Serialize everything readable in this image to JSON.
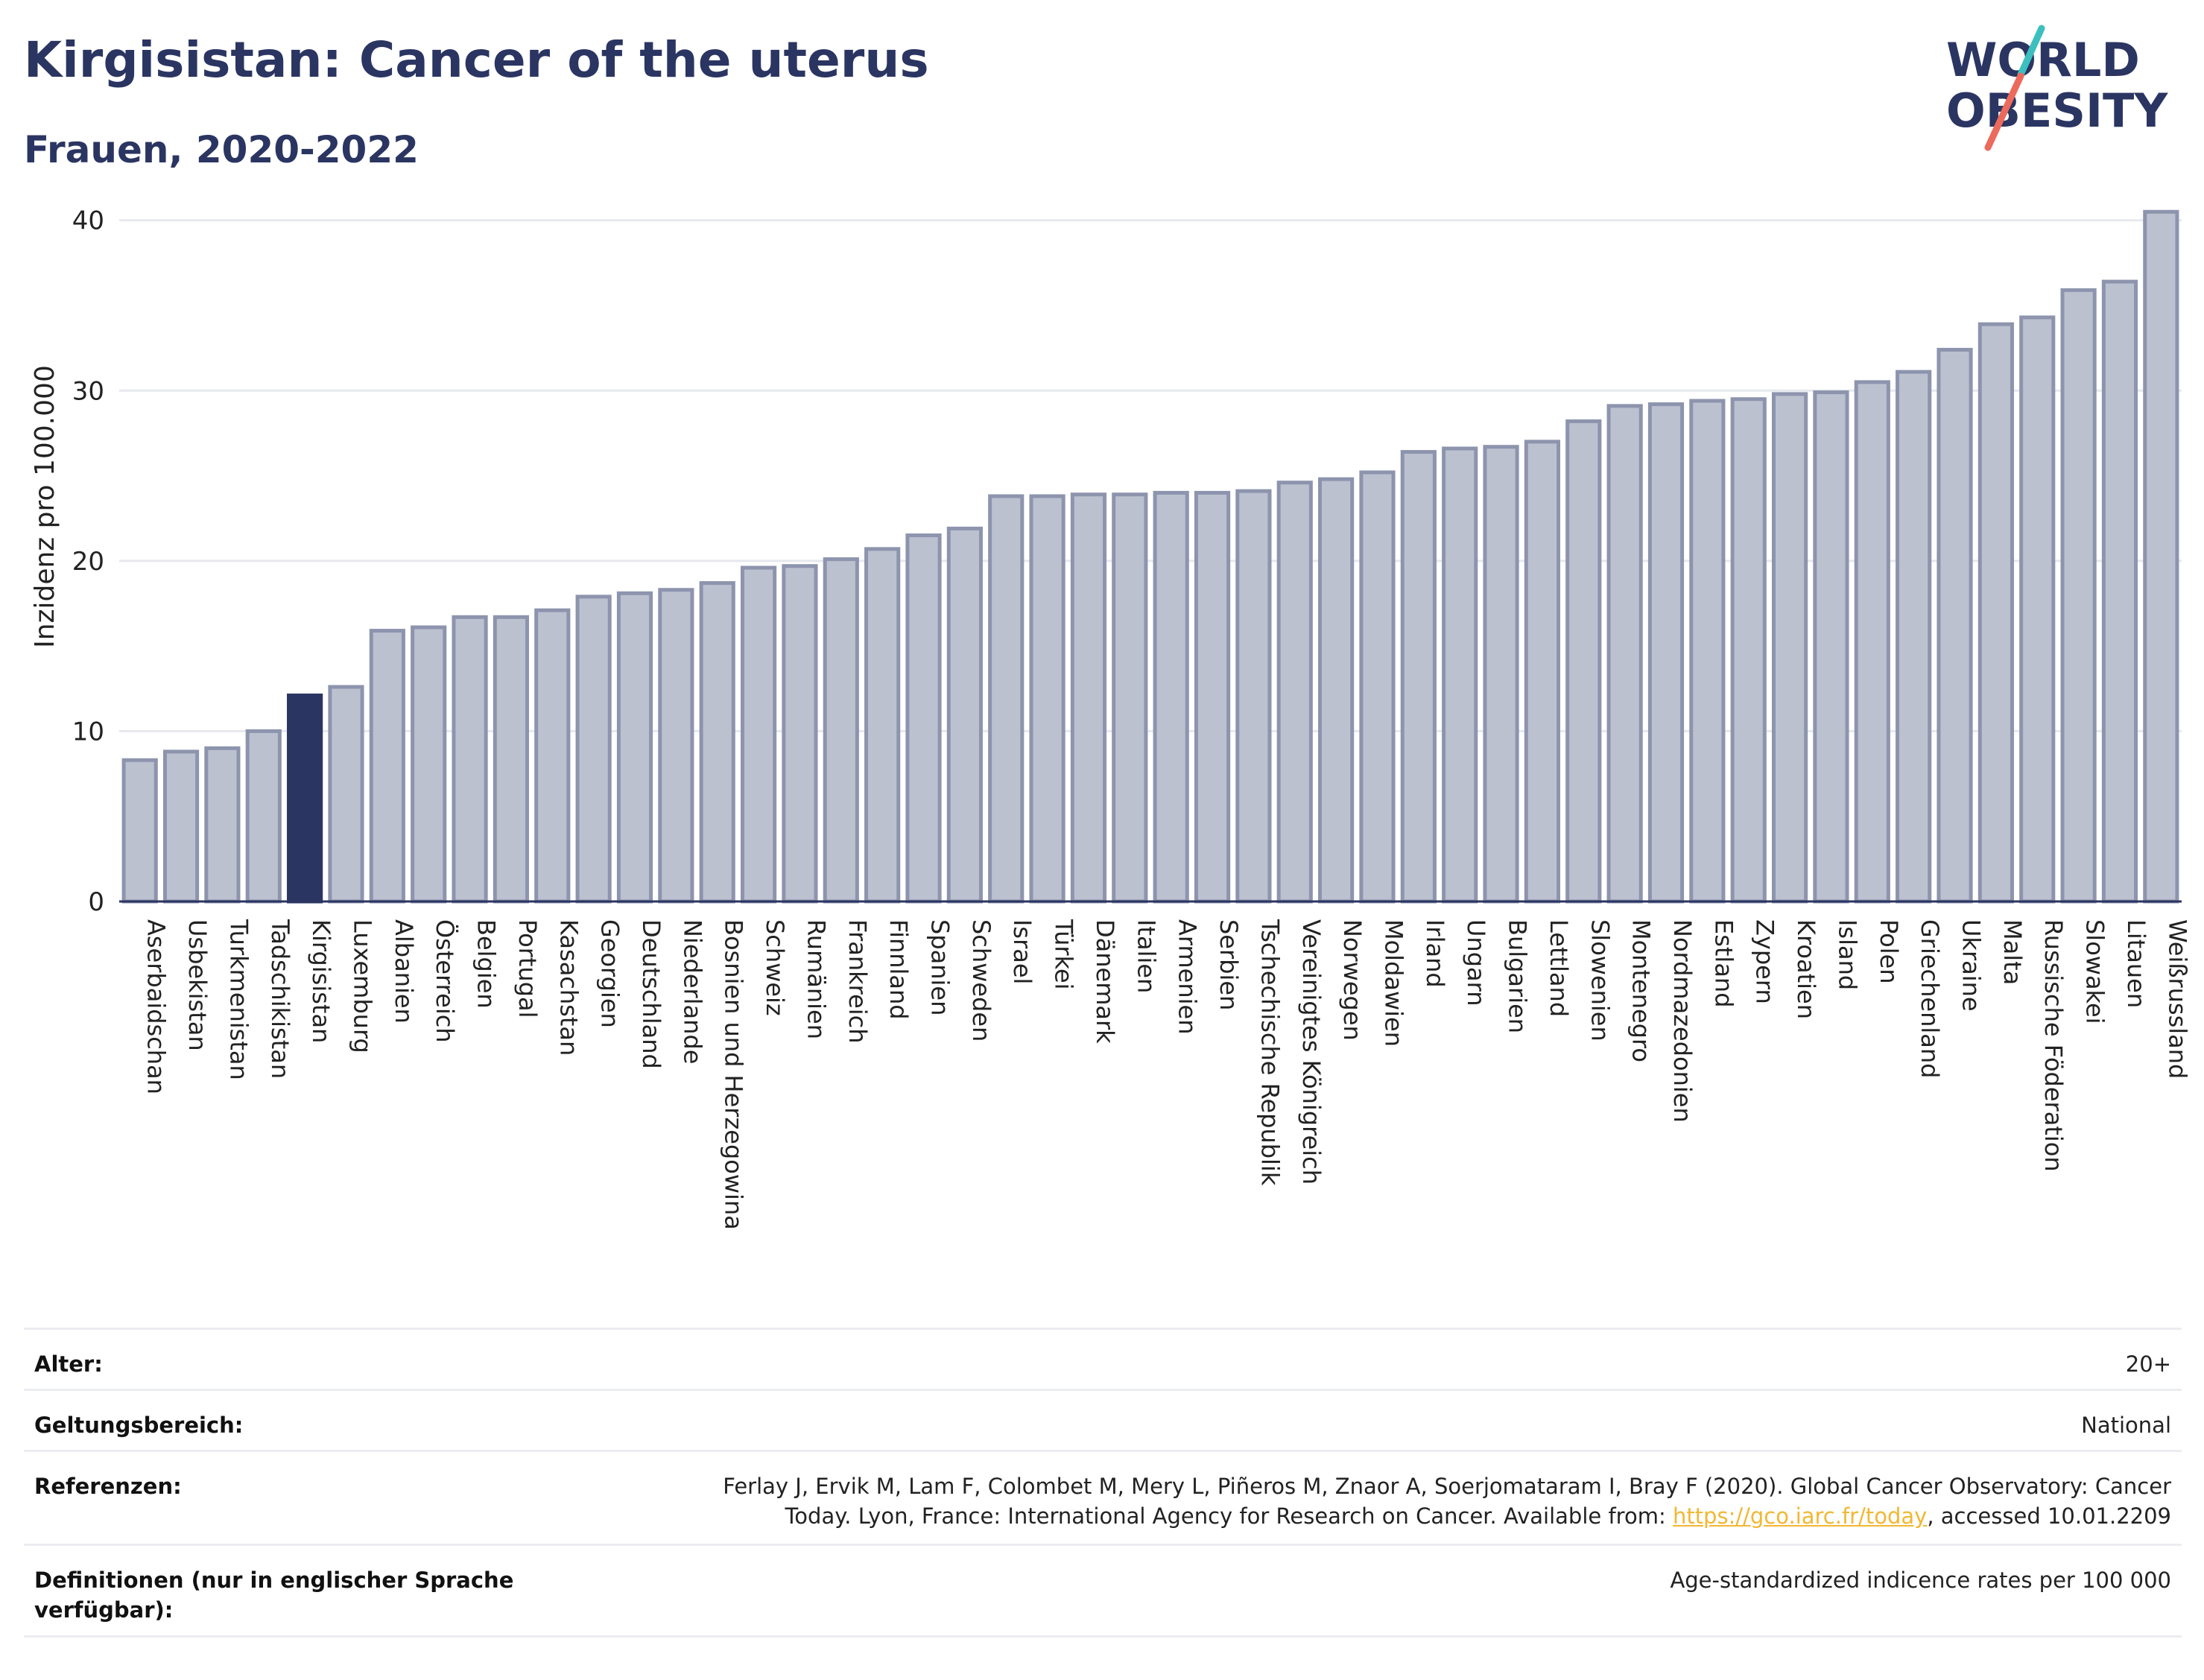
{
  "title": "Kirgisistan: Cancer of the uterus",
  "subtitle": "Frauen, 2020-2022",
  "logo": {
    "line1": "WORLD",
    "line2": "OBESITY"
  },
  "colors": {
    "bar": "#bcc1d0",
    "bar_stroke": "#8d94ad",
    "highlight": "#2b3562",
    "text": "#2b3562",
    "grid": "#e6e8ee",
    "link": "#f2b733"
  },
  "chart_data": {
    "type": "bar",
    "ylabel": "Inzidenz pro 100.000",
    "xlabel": "",
    "ylim": [
      0,
      42
    ],
    "yticks": [
      0,
      10,
      20,
      30,
      40
    ],
    "grid": true,
    "highlight": "Kirgisistan",
    "categories": [
      "Aserbaidschan",
      "Usbekistan",
      "Turkmenistan",
      "Tadschikistan",
      "Kirgisistan",
      "Luxemburg",
      "Albanien",
      "Österreich",
      "Belgien",
      "Portugal",
      "Kasachstan",
      "Georgien",
      "Deutschland",
      "Niederlande",
      "Bosnien und Herzegowina",
      "Schweiz",
      "Rumänien",
      "Frankreich",
      "Finnland",
      "Spanien",
      "Schweden",
      "Israel",
      "Türkei",
      "Dänemark",
      "Italien",
      "Armenien",
      "Serbien",
      "Tschechische Republik",
      "Vereinigtes Königreich",
      "Norwegen",
      "Moldawien",
      "Irland",
      "Ungarn",
      "Bulgarien",
      "Lettland",
      "Slowenien",
      "Montenegro",
      "Nordmazedonien",
      "Estland",
      "Zypern",
      "Kroatien",
      "Island",
      "Polen",
      "Griechenland",
      "Ukraine",
      "Malta",
      "Russische Föderation",
      "Slowakei",
      "Litauen",
      "Weißrussland"
    ],
    "values": [
      8.3,
      8.8,
      9.0,
      10.0,
      12.1,
      12.6,
      15.9,
      16.1,
      16.7,
      16.7,
      17.1,
      17.9,
      18.1,
      18.3,
      18.7,
      19.6,
      19.7,
      20.1,
      20.7,
      21.5,
      21.9,
      23.8,
      23.8,
      23.9,
      23.9,
      24.0,
      24.0,
      24.1,
      24.6,
      24.8,
      25.2,
      26.4,
      26.6,
      26.7,
      27.0,
      28.2,
      29.1,
      29.2,
      29.4,
      29.5,
      29.8,
      29.9,
      30.5,
      31.1,
      32.4,
      33.9,
      34.3,
      35.9,
      36.4,
      40.5
    ]
  },
  "meta": {
    "age_label": "Alter:",
    "age_value": "20+",
    "scope_label": "Geltungsbereich:",
    "scope_value": "National",
    "ref_label": "Referenzen:",
    "ref_text1": "Ferlay J, Ervik M, Lam F, Colombet M, Mery L, Piñeros M, Znaor A, Soerjomataram I, Bray F (2020). Global Cancer Observatory: Cancer",
    "ref_text2": "Today. Lyon, France: International Agency for Research on Cancer. Available from: ",
    "ref_link": "https://gco.iarc.fr/today",
    "ref_text3": ", accessed 10.01.2209",
    "def_label": "Definitionen (nur in englischer Sprache verfügbar):",
    "def_value": "Age-standardized indicence rates per 100 000"
  }
}
